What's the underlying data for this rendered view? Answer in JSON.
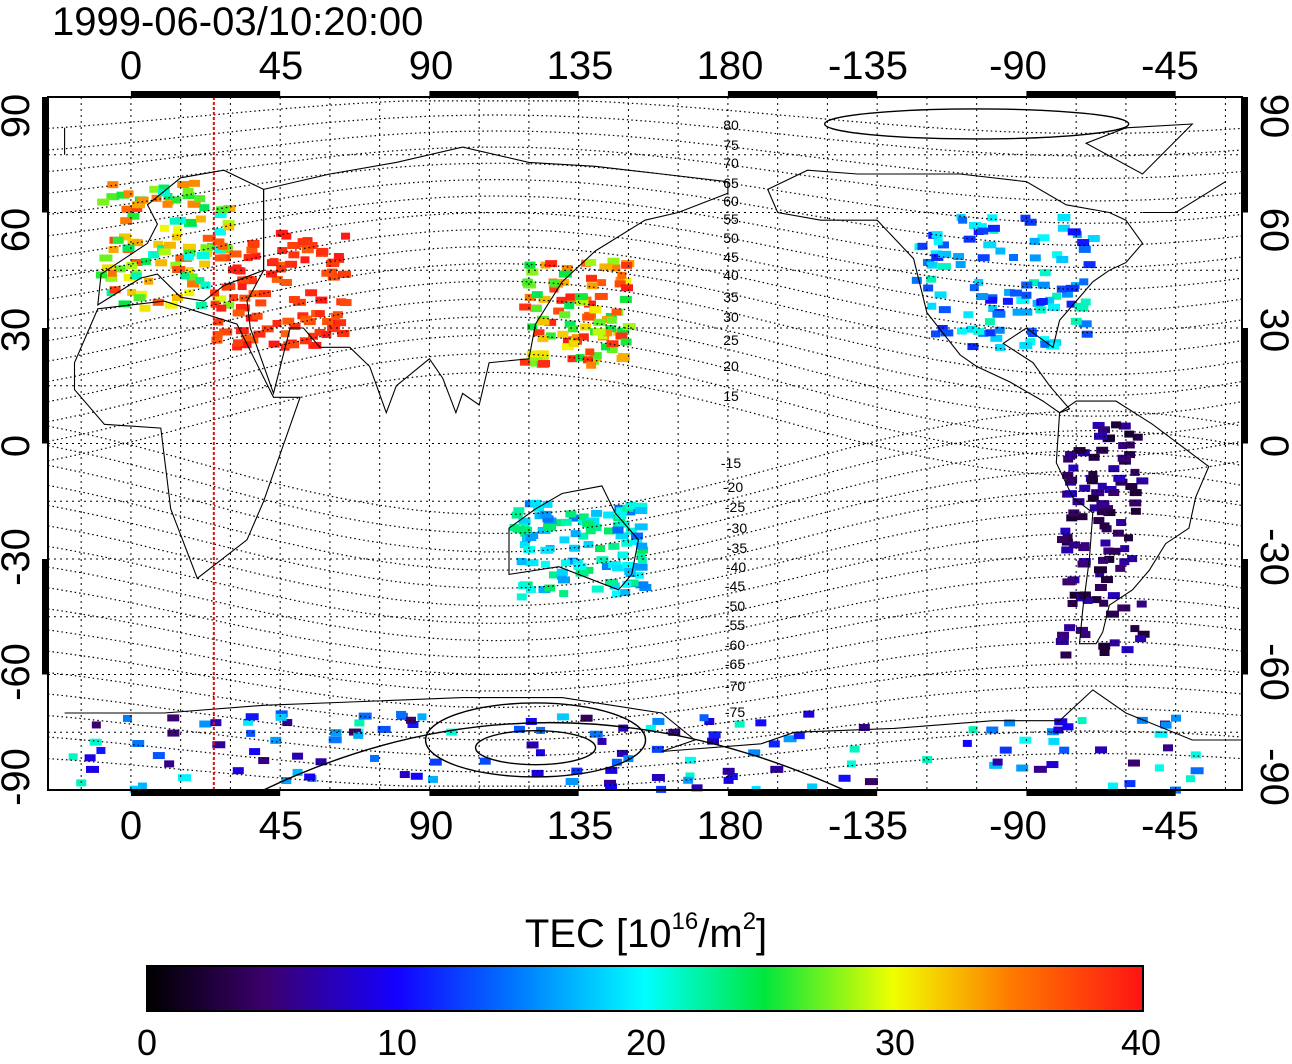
{
  "title": "1999-06-03/10:20:00",
  "map": {
    "projection": "cylindrical",
    "lon_ticks": [
      "0",
      "45",
      "90",
      "135",
      "180",
      "-135",
      "-90",
      "-45"
    ],
    "lat_ticks_left": [
      "90",
      "60",
      "30",
      "0",
      "-30",
      "-60",
      "-90"
    ],
    "lat_ticks_right": [
      "90",
      "60",
      "30",
      "0",
      "-30",
      "-60",
      "-90"
    ],
    "lon_range": [
      -25,
      335
    ],
    "lat_range": [
      -90,
      90
    ],
    "grid": true,
    "terminator_longitude": 25,
    "terminator_color": "#e01010",
    "contour_labels_north": [
      "80",
      "75",
      "70",
      "65",
      "60",
      "55",
      "50",
      "45",
      "40",
      "35",
      "30",
      "25",
      "20",
      "15"
    ],
    "contour_labels_south": [
      "-15",
      "-20",
      "-25",
      "-30",
      "-35",
      "-40",
      "-45",
      "-50",
      "-55",
      "-60",
      "-65",
      "-70",
      "-75"
    ]
  },
  "colorbar": {
    "label": "TEC  [10",
    "label_exp": "16",
    "label_unit": "/m",
    "label_unit_exp": "2",
    "label_close": "]",
    "min": 0,
    "max": 40,
    "ticks": [
      "0",
      "10",
      "20",
      "30",
      "40"
    ],
    "tick_values": [
      0,
      10,
      20,
      30,
      40
    ]
  },
  "tec_clusters": [
    {
      "region": "Europe",
      "lon_range": [
        -10,
        30
      ],
      "lat_range": [
        35,
        68
      ],
      "tec_range": [
        20,
        38
      ]
    },
    {
      "region": "North Africa / Middle East",
      "lon_range": [
        25,
        65
      ],
      "lat_range": [
        25,
        55
      ],
      "tec_range": [
        36,
        40
      ]
    },
    {
      "region": "East Asia / Japan",
      "lon_range": [
        118,
        150
      ],
      "lat_range": [
        20,
        48
      ],
      "tec_range": [
        24,
        40
      ]
    },
    {
      "region": "North America",
      "lon_range": [
        -125,
        -70
      ],
      "lat_range": [
        25,
        60
      ],
      "tec_range": [
        10,
        22
      ]
    },
    {
      "region": "South America",
      "lon_range": [
        -80,
        -55
      ],
      "lat_range": [
        -55,
        5
      ],
      "tec_range": [
        2,
        8
      ]
    },
    {
      "region": "Australia",
      "lon_range": [
        115,
        155
      ],
      "lat_range": [
        -40,
        -15
      ],
      "tec_range": [
        14,
        24
      ]
    },
    {
      "region": "Antarctica",
      "lon_range": [
        -20,
        330
      ],
      "lat_range": [
        -90,
        -70
      ],
      "tec_range": [
        4,
        22
      ]
    }
  ]
}
